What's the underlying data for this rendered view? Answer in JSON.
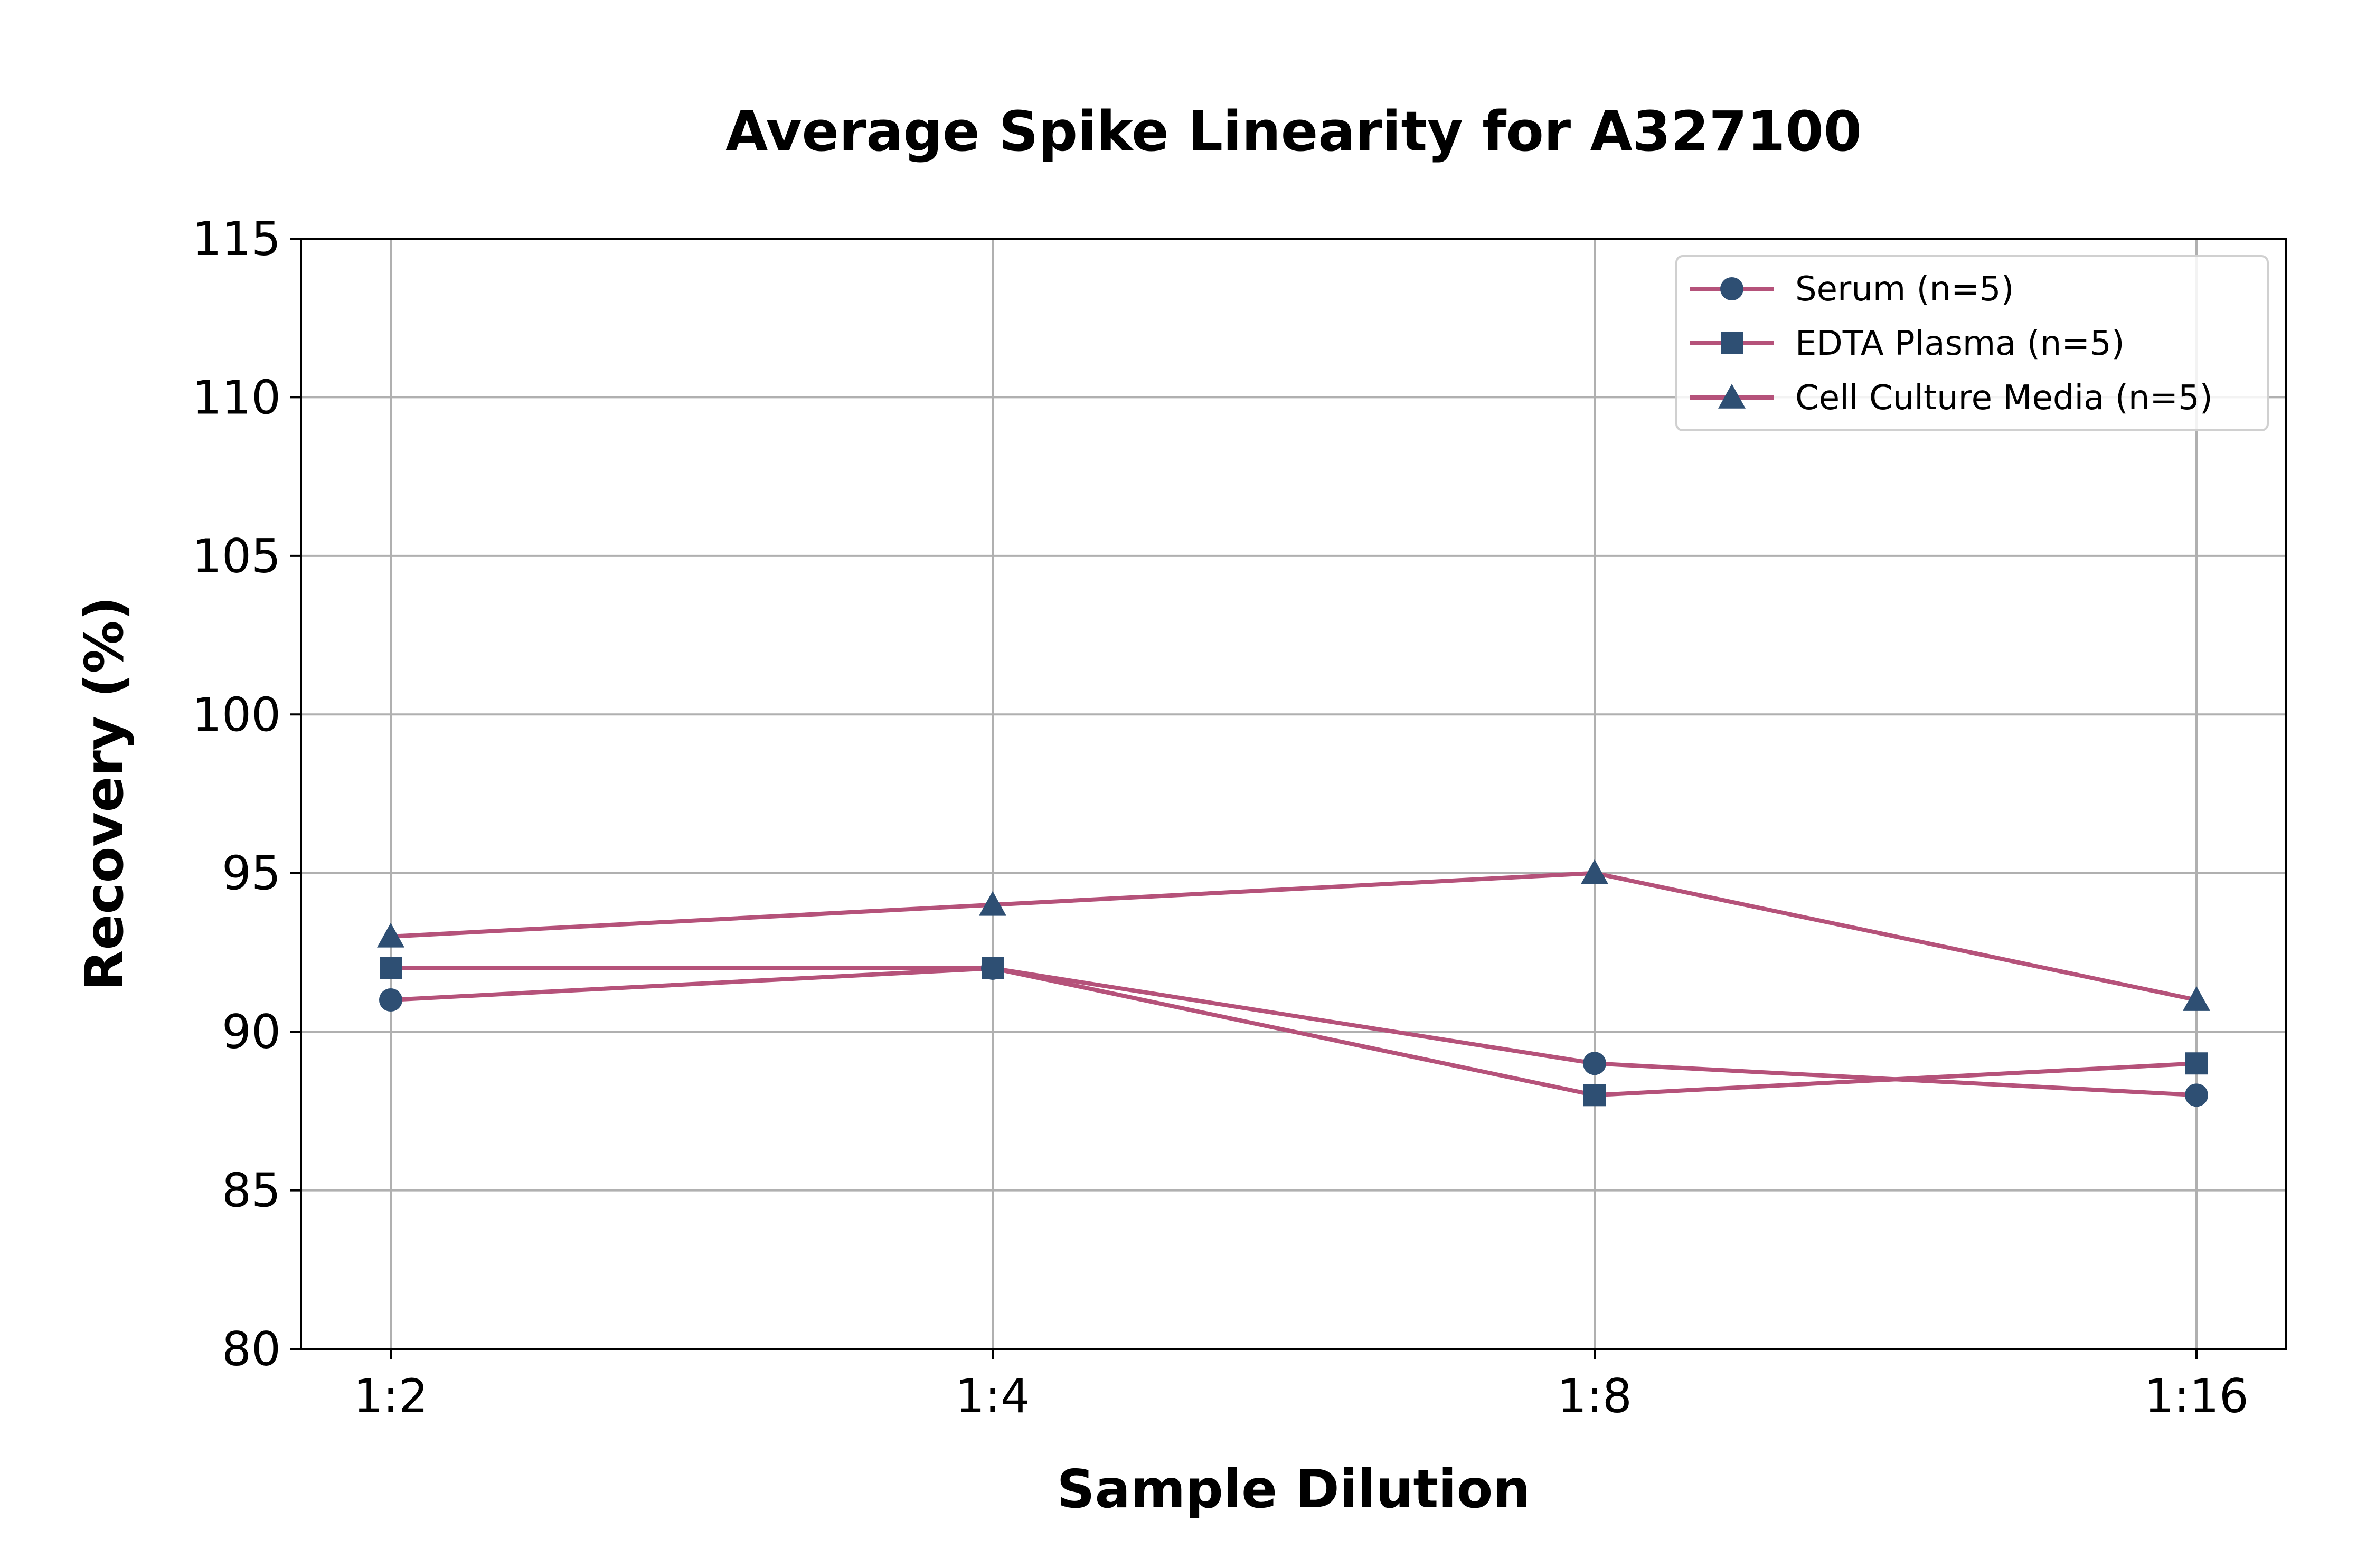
{
  "chart_data": {
    "type": "line",
    "title": "Average Spike Linearity for A327100",
    "xlabel": "Sample Dilution",
    "ylabel": "Recovery (%)",
    "categories": [
      "1:2",
      "1:4",
      "1:8",
      "1:16"
    ],
    "ylim": [
      80,
      115
    ],
    "yticks": [
      80,
      85,
      90,
      95,
      100,
      105,
      110,
      115
    ],
    "grid": true,
    "legend_position": "top-right",
    "line_color": "#b5527a",
    "marker_color": "#2e4f73",
    "series": [
      {
        "name": "Serum (n=5)",
        "marker": "circle",
        "values": [
          91,
          92,
          89,
          88
        ]
      },
      {
        "name": "EDTA Plasma (n=5)",
        "marker": "square",
        "values": [
          92,
          92,
          88,
          89
        ]
      },
      {
        "name": "Cell Culture Media (n=5)",
        "marker": "triangle",
        "values": [
          93,
          94,
          95,
          91
        ]
      }
    ]
  }
}
